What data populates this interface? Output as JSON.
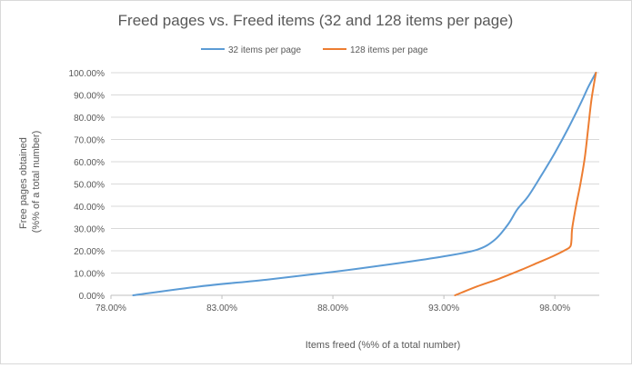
{
  "chart_data": {
    "type": "line",
    "title": "Freed pages vs. Freed items (32 and 128 items per page)",
    "xlabel": "Items freed (%% of a total number)",
    "ylabel_lines": [
      "Free pages obtained",
      "(%% of a total number)"
    ],
    "xlim": [
      78,
      100
    ],
    "ylim": [
      0,
      100
    ],
    "x_ticks": [
      78,
      83,
      88,
      93,
      98
    ],
    "x_tick_labels": [
      "78.00%",
      "83.00%",
      "88.00%",
      "93.00%",
      "98.00%"
    ],
    "y_ticks": [
      0,
      10,
      20,
      30,
      40,
      50,
      60,
      70,
      80,
      90,
      100
    ],
    "y_tick_labels": [
      "0.00%",
      "10.00%",
      "20.00%",
      "30.00%",
      "40.00%",
      "50.00%",
      "60.00%",
      "70.00%",
      "80.00%",
      "90.00%",
      "100.00%"
    ],
    "grid": "horizontal",
    "legend_position": "top",
    "series": [
      {
        "name": "32 items per page",
        "color": "#5b9bd5",
        "points": [
          [
            79.0,
            0
          ],
          [
            82.0,
            4
          ],
          [
            85.0,
            7
          ],
          [
            88.0,
            10.5
          ],
          [
            91.0,
            14.5
          ],
          [
            93.0,
            17.5
          ],
          [
            94.5,
            20.5
          ],
          [
            95.3,
            25
          ],
          [
            95.9,
            32
          ],
          [
            96.3,
            38.5
          ],
          [
            96.8,
            44.5
          ],
          [
            97.4,
            54
          ],
          [
            98.0,
            64
          ],
          [
            98.6,
            75
          ],
          [
            99.2,
            87
          ],
          [
            99.5,
            93.5
          ],
          [
            99.85,
            100
          ]
        ]
      },
      {
        "name": "128 items per page",
        "color": "#ed7d31",
        "points": [
          [
            93.5,
            0
          ],
          [
            94.5,
            4
          ],
          [
            95.5,
            7.5
          ],
          [
            96.5,
            11.5
          ],
          [
            97.2,
            14.5
          ],
          [
            97.9,
            17.5
          ],
          [
            98.5,
            20.5
          ],
          [
            98.7,
            22
          ],
          [
            98.75,
            25
          ],
          [
            98.78,
            30
          ],
          [
            98.95,
            40
          ],
          [
            99.15,
            50
          ],
          [
            99.35,
            62
          ],
          [
            99.5,
            75
          ],
          [
            99.65,
            88
          ],
          [
            99.85,
            100
          ]
        ]
      }
    ]
  }
}
